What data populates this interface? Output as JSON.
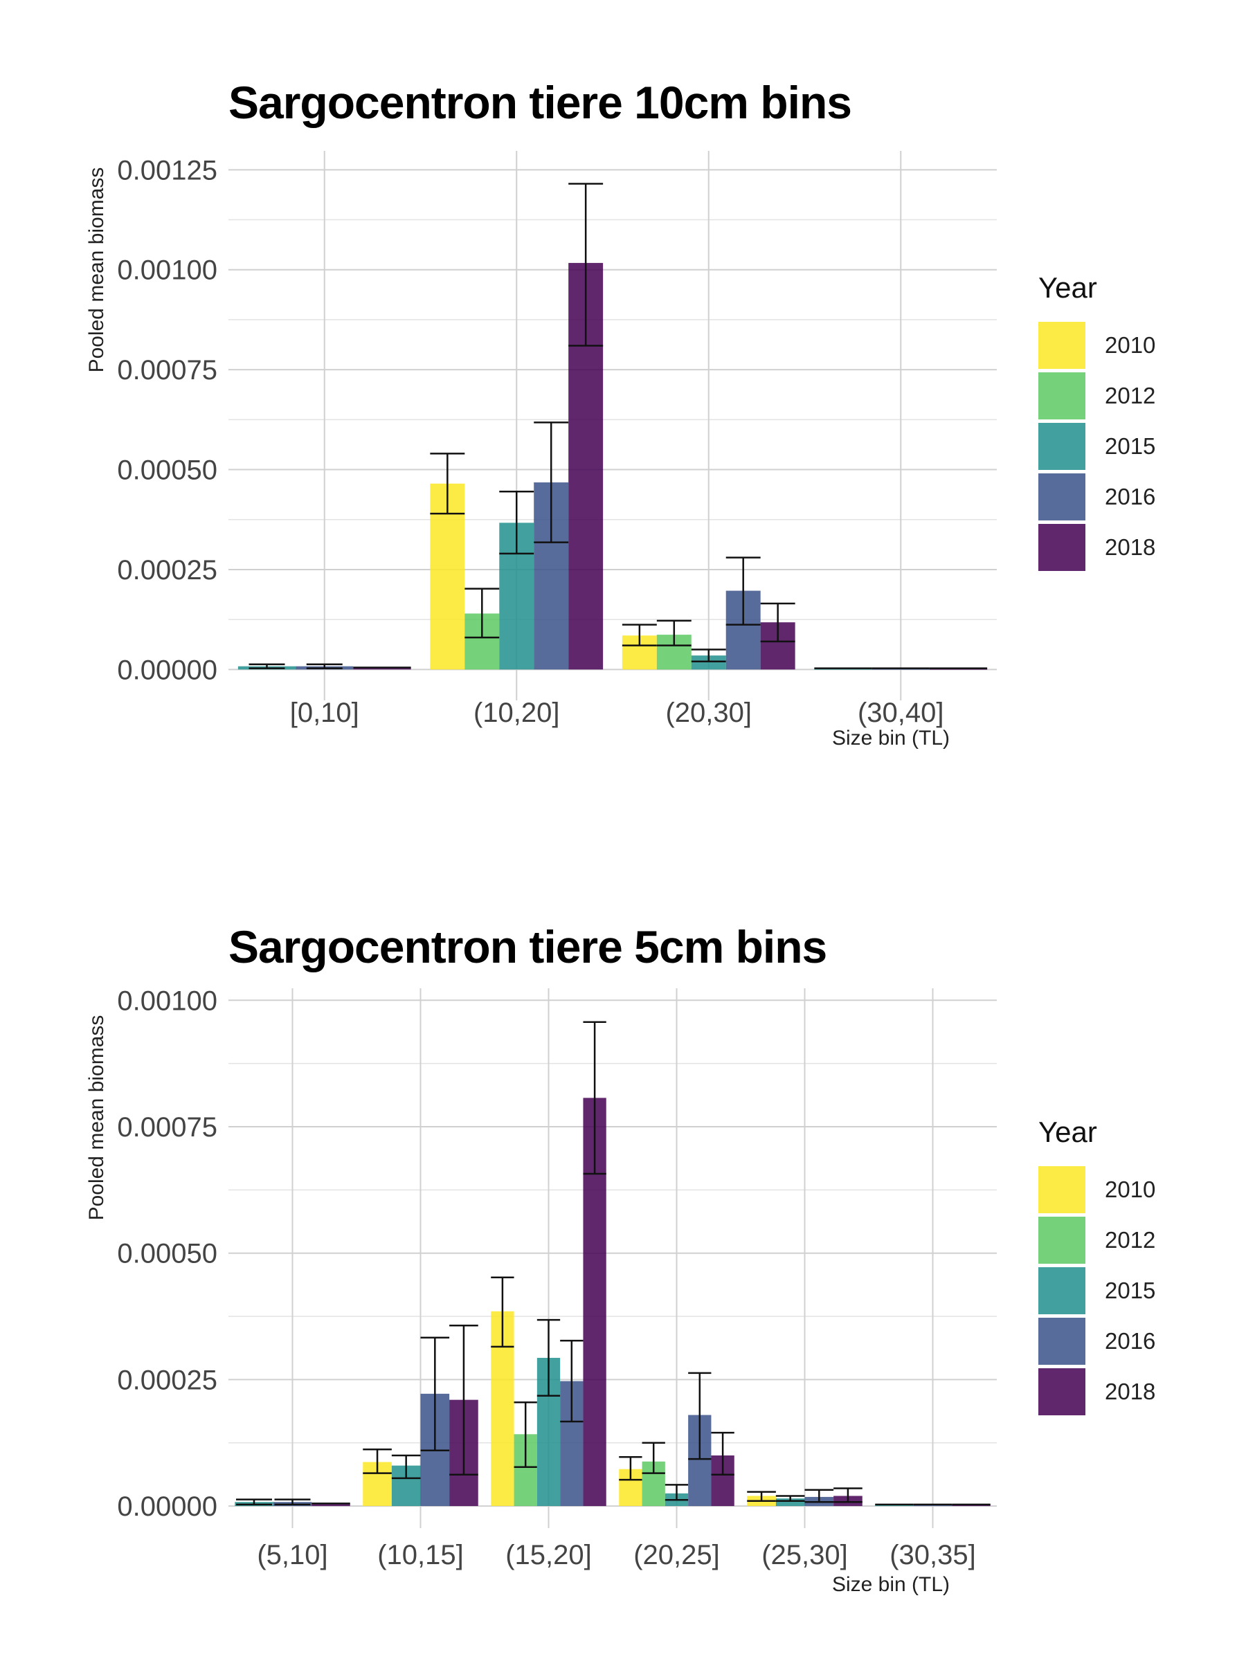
{
  "chart_data": [
    {
      "type": "bar",
      "title": "Sargocentron tiere 10cm bins",
      "xlabel": "Size bin (TL)",
      "ylabel": "Pooled mean biomass",
      "categories": [
        "[0,10]",
        "(10,20]",
        "(20,30]",
        "(30,40]"
      ],
      "ylim": [
        -6e-05,
        0.00128
      ],
      "yticks": [
        "0.00000",
        "0.00025",
        "0.00050",
        "0.00075",
        "0.00100",
        "0.00125"
      ],
      "ytick_values": [
        0,
        0.00025,
        0.0005,
        0.00075,
        0.001,
        0.00125
      ],
      "legend_title": "Year",
      "legend_position": "right",
      "grid": true,
      "series": [
        {
          "name": "2010",
          "color": "#FDE725",
          "values": [
            null,
            0.000465,
            8.5e-05,
            null
          ],
          "errors": [
            null,
            [
              0.00039,
              0.00054
            ],
            [
              6e-05,
              0.000112
            ],
            null
          ]
        },
        {
          "name": "2012",
          "color": "#5DC963",
          "values": [
            null,
            0.00014,
            8.7e-05,
            null
          ],
          "errors": [
            null,
            [
              8e-05,
              0.000202
            ],
            [
              6e-05,
              0.000122
            ],
            null
          ]
        },
        {
          "name": "2015",
          "color": "#21908D",
          "values": [
            8e-06,
            0.000367,
            3.5e-05,
            3e-06
          ],
          "errors": [
            [
              3e-06,
              1.3e-05
            ],
            [
              0.00029,
              0.000445
            ],
            [
              2e-05,
              5e-05
            ],
            null
          ]
        },
        {
          "name": "2016",
          "color": "#3B528B",
          "values": [
            8e-06,
            0.000468,
            0.000197,
            3e-06
          ],
          "errors": [
            [
              3e-06,
              1.3e-05
            ],
            [
              0.000318,
              0.000618
            ],
            [
              0.000112,
              0.00028
            ],
            null
          ]
        },
        {
          "name": "2018",
          "color": "#440154",
          "values": [
            5e-06,
            0.001017,
            0.000118,
            3e-06
          ],
          "errors": [
            null,
            [
              0.00081,
              0.001215
            ],
            [
              7e-05,
              0.000165
            ],
            null
          ]
        }
      ]
    },
    {
      "type": "bar",
      "title": "Sargocentron tiere 5cm bins",
      "xlabel": "Size bin (TL)",
      "ylabel": "Pooled mean biomass",
      "categories": [
        "(5,10]",
        "(10,15]",
        "(15,20]",
        "(20,25]",
        "(25,30]",
        "(30,35]"
      ],
      "ylim": [
        -3e-05,
        0.00101
      ],
      "yticks": [
        "0.00000",
        "0.00025",
        "0.00050",
        "0.00075",
        "0.00100"
      ],
      "ytick_values": [
        0,
        0.00025,
        0.0005,
        0.00075,
        0.001
      ],
      "legend_title": "Year",
      "legend_position": "right",
      "grid": true,
      "series": [
        {
          "name": "2010",
          "color": "#FDE725",
          "values": [
            null,
            8.7e-05,
            0.000385,
            7.3e-05,
            2e-05,
            null
          ],
          "errors": [
            null,
            [
              6.5e-05,
              0.000112
            ],
            [
              0.000315,
              0.000452
            ],
            [
              5.2e-05,
              9.7e-05
            ],
            [
              1e-05,
              2.8e-05
            ],
            null
          ]
        },
        {
          "name": "2012",
          "color": "#5DC963",
          "values": [
            null,
            null,
            0.000142,
            8.8e-05,
            null,
            null
          ],
          "errors": [
            null,
            null,
            [
              7.7e-05,
              0.000205
            ],
            [
              6.5e-05,
              0.000125
            ],
            null,
            null
          ]
        },
        {
          "name": "2015",
          "color": "#21908D",
          "values": [
            8e-06,
            8e-05,
            0.000293,
            2.5e-05,
            1.5e-05,
            3e-06
          ],
          "errors": [
            [
              3e-06,
              1.3e-05
            ],
            [
              5.5e-05,
              0.0001
            ],
            [
              0.000218,
              0.000368
            ],
            [
              1.2e-05,
              4.2e-05
            ],
            [
              1e-05,
              2e-05
            ],
            null
          ]
        },
        {
          "name": "2016",
          "color": "#3B528B",
          "values": [
            8e-06,
            0.000222,
            0.000247,
            0.00018,
            1.8e-05,
            3e-06
          ],
          "errors": [
            [
              3e-06,
              1.3e-05
            ],
            [
              0.00011,
              0.000333
            ],
            [
              0.000167,
              0.000327
            ],
            [
              9.3e-05,
              0.000263
            ],
            [
              8e-06,
              3.2e-05
            ],
            null
          ]
        },
        {
          "name": "2018",
          "color": "#440154",
          "values": [
            5e-06,
            0.00021,
            0.000807,
            0.0001,
            2e-05,
            3e-06
          ],
          "errors": [
            null,
            [
              6.2e-05,
              0.000357
            ],
            [
              0.000657,
              0.000957
            ],
            [
              6.2e-05,
              0.000145
            ],
            [
              8e-06,
              3.5e-05
            ],
            null
          ]
        }
      ]
    }
  ]
}
